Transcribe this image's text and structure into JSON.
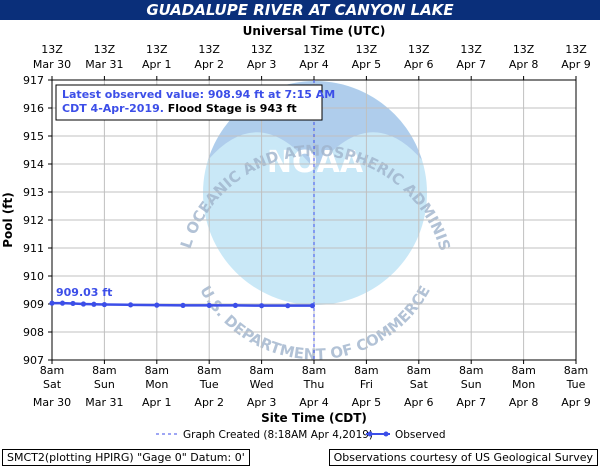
{
  "title": "GUADALUPE RIVER AT CANYON LAKE",
  "top_axis_label": "Universal Time (UTC)",
  "top_ticks": [
    {
      "line1": "13Z",
      "line2": "Mar 30"
    },
    {
      "line1": "13Z",
      "line2": "Mar 31"
    },
    {
      "line1": "13Z",
      "line2": "Apr 1"
    },
    {
      "line1": "13Z",
      "line2": "Apr 2"
    },
    {
      "line1": "13Z",
      "line2": "Apr 3"
    },
    {
      "line1": "13Z",
      "line2": "Apr 4"
    },
    {
      "line1": "13Z",
      "line2": "Apr 5"
    },
    {
      "line1": "13Z",
      "line2": "Apr 6"
    },
    {
      "line1": "13Z",
      "line2": "Apr 7"
    },
    {
      "line1": "13Z",
      "line2": "Apr 8"
    },
    {
      "line1": "13Z",
      "line2": "Apr 9"
    }
  ],
  "bottom_ticks": [
    {
      "line1": "8am",
      "line2": "Sat",
      "line3": "Mar 30"
    },
    {
      "line1": "8am",
      "line2": "Sun",
      "line3": "Mar 31"
    },
    {
      "line1": "8am",
      "line2": "Mon",
      "line3": "Apr 1"
    },
    {
      "line1": "8am",
      "line2": "Tue",
      "line3": "Apr 2"
    },
    {
      "line1": "8am",
      "line2": "Wed",
      "line3": "Apr 3"
    },
    {
      "line1": "8am",
      "line2": "Thu",
      "line3": "Apr 4"
    },
    {
      "line1": "8am",
      "line2": "Fri",
      "line3": "Apr 5"
    },
    {
      "line1": "8am",
      "line2": "Sat",
      "line3": "Apr 6"
    },
    {
      "line1": "8am",
      "line2": "Sun",
      "line3": "Apr 7"
    },
    {
      "line1": "8am",
      "line2": "Mon",
      "line3": "Apr 8"
    },
    {
      "line1": "8am",
      "line2": "Tue",
      "line3": "Apr 9"
    }
  ],
  "info_box": {
    "line1": "Latest observed value: 908.94 ft at 7:15 AM",
    "line2_part1": "CDT 4-Apr-2019.",
    "line2_part2": " Flood Stage is 943 ft"
  },
  "start_label": "909.03 ft",
  "legend": {
    "graph_created": "Graph Created (8:18AM Apr 4,2019)",
    "observed": "Observed"
  },
  "watermark": {
    "top_text": "NATIONAL OCEANIC AND ATMOSPHERIC ADMINISTRATION",
    "bottom_text": "U.S. DEPARTMENT OF COMMERCE",
    "logo_text": "NOAA"
  },
  "footer": {
    "left": "SMCT2(plotting HPIRG) \"Gage 0\" Datum: 0'",
    "right": "Observations courtesy of US Geological Survey"
  },
  "colors": {
    "title_bg": "#0a2f7a",
    "observed_line": "#3c4ee8",
    "info_text": "#3c4ee8",
    "grid": "#c0c0c0"
  },
  "chart_data": {
    "type": "line",
    "title": "GUADALUPE RIVER AT CANYON LAKE",
    "xlabel": "Site Time (CDT)",
    "ylabel": "Pool (ft)",
    "ylim": [
      907,
      917
    ],
    "yticks": [
      907,
      908,
      909,
      910,
      911,
      912,
      913,
      914,
      915,
      916,
      917
    ],
    "x_unit": "days since Sat Mar 30 8am CDT",
    "xlim": [
      0,
      10
    ],
    "grid": true,
    "latest_marker_x": 5.0,
    "series": [
      {
        "name": "Observed",
        "x": [
          0.0,
          0.2,
          0.4,
          0.6,
          0.8,
          1.0,
          1.5,
          2.0,
          2.5,
          3.0,
          3.5,
          4.0,
          4.5,
          4.97
        ],
        "y": [
          909.03,
          909.03,
          909.02,
          909.0,
          908.99,
          908.98,
          908.97,
          908.96,
          908.95,
          908.95,
          908.95,
          908.94,
          908.94,
          908.94
        ]
      }
    ]
  }
}
